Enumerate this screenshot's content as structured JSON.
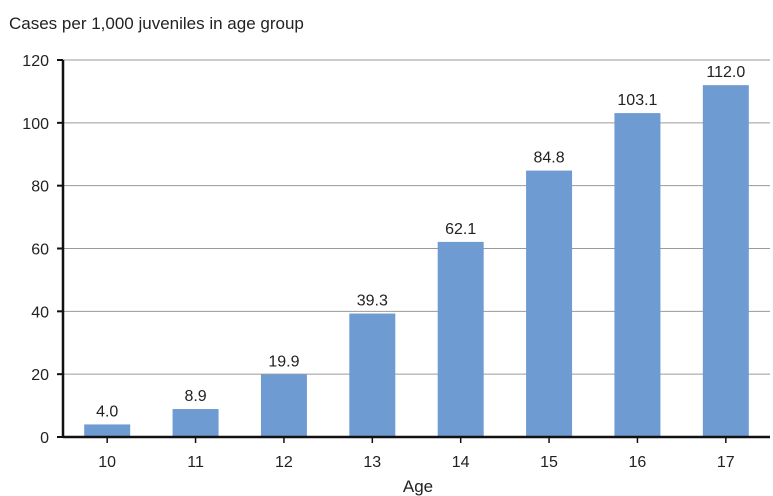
{
  "chart_data": {
    "type": "bar",
    "ylabel": "Cases per 1,000 juveniles in age group",
    "xlabel": "Age",
    "categories": [
      "10",
      "11",
      "12",
      "13",
      "14",
      "15",
      "16",
      "17"
    ],
    "values": [
      4.0,
      8.9,
      19.9,
      39.3,
      62.1,
      84.8,
      103.1,
      112.0
    ],
    "data_labels": [
      "4.0",
      "8.9",
      "19.9",
      "39.3",
      "62.1",
      "84.8",
      "103.1",
      "112.0"
    ],
    "ylim": [
      0,
      120
    ],
    "yticks": [
      "0",
      "20",
      "40",
      "60",
      "80",
      "100",
      "120"
    ],
    "grid": true,
    "bar_color": "#6f9bd3",
    "axis_color": "#111111",
    "grid_color": "#9a9a9a"
  }
}
